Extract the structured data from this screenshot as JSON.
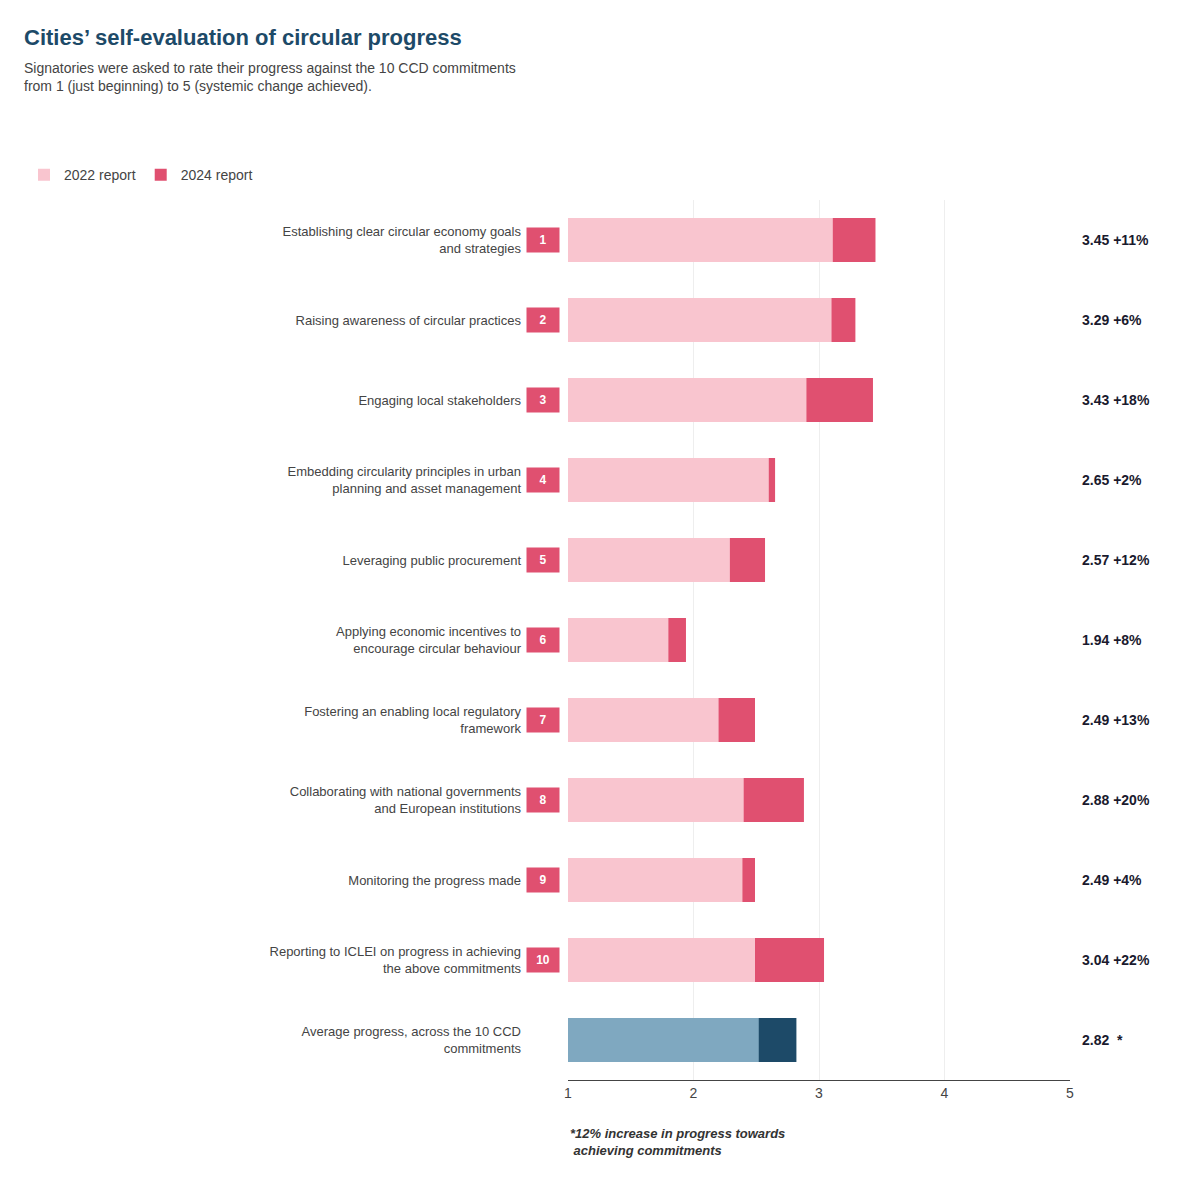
{
  "chart_data": {
    "type": "bar",
    "orientation": "horizontal",
    "title": "Cities’ self-evaluation of circular progress",
    "subtitle": "Signatories were asked to rate their progress against the 10 CCD commitments\nfrom 1 (just beginning) to 5 (systemic change achieved).",
    "categories": [
      "Establishing clear circular economy goals\nand strategies",
      "Raising awareness of circular practices",
      "Engaging local stakeholders",
      "Embedding circularity principles in urban\nplanning and asset management",
      "Leveraging public procurement",
      "Applying economic incentives to\nencourage circular behaviour",
      "Fostering an enabling local regulatory\nframework",
      "Collaborating with national governments\nand European institutions",
      "Monitoring the progress made",
      "Reporting to ICLEI on progress in achieving\nthe above commitments",
      "Average progress, across the 10 CCD\ncommitments"
    ],
    "series": [
      {
        "name": "2022 report",
        "colors": [
          "#F9C5CF",
          "#F9C5CF",
          "#F9C5CF",
          "#F9C5CF",
          "#F9C5CF",
          "#F9C5CF",
          "#F9C5CF",
          "#F9C5CF",
          "#F9C5CF",
          "#F9C5CF",
          "#7FA8C0"
        ],
        "values": [
          3.11,
          3.1,
          2.9,
          2.6,
          2.29,
          1.8,
          2.2,
          2.4,
          2.39,
          2.49,
          2.52
        ]
      },
      {
        "name": "2024 report",
        "colors": [
          "#E05070",
          "#E05070",
          "#E05070",
          "#E05070",
          "#E05070",
          "#E05070",
          "#E05070",
          "#E05070",
          "#E05070",
          "#E05070",
          "#1D4A68"
        ],
        "values": [
          3.45,
          3.29,
          3.43,
          2.65,
          2.57,
          1.94,
          2.49,
          2.88,
          2.49,
          3.04,
          2.82
        ],
        "value_labels": [
          "3.45 +11%",
          "3.29 +6%",
          "3.43 +18%",
          "2.65 +2%",
          "2.57 +12%",
          "1.94 +8%",
          "2.49 +13%",
          "2.88 +20%",
          "2.49 +4%",
          "3.04 +22%",
          "2.82  *"
        ]
      }
    ],
    "xlim": [
      1,
      5
    ],
    "xticks": [
      1,
      2,
      3,
      4,
      5
    ],
    "grid": true,
    "legend": "top left",
    "data_labels": true,
    "annotations": [
      {
        "text": "1",
        "category": "Establishing clear circular economy goals\nand strategies",
        "color": "#E05070"
      },
      {
        "text": "2",
        "category": "Raising awareness of circular practices",
        "color": "#E05070"
      },
      {
        "text": "3",
        "category": "Engaging local stakeholders",
        "color": "#E05070"
      },
      {
        "text": "4",
        "category": "Embedding circularity principles in urban\nplanning and asset management",
        "color": "#E05070"
      },
      {
        "text": "5",
        "category": "Leveraging public procurement",
        "color": "#E05070"
      },
      {
        "text": "6",
        "category": "Applying economic incentives to\nencourage circular behaviour",
        "color": "#E05070"
      },
      {
        "text": "7",
        "category": "Fostering an enabling local regulatory\nframework",
        "color": "#E05070"
      },
      {
        "text": "8",
        "category": "Collaborating with national governments\nand European institutions",
        "color": "#E05070"
      },
      {
        "text": "9",
        "category": "Monitoring the progress made",
        "color": "#E05070"
      },
      {
        "text": "10",
        "category": "Reporting to ICLEI on progress in achieving\nthe above commitments",
        "color": "#E05070"
      },
      {
        "text": "*12% increase in progress towards\n achieving commitments"
      }
    ]
  }
}
